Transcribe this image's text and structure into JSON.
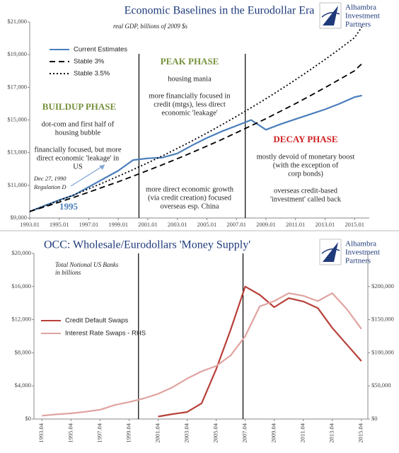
{
  "chart_data": [
    {
      "type": "line",
      "title": "Economic Baselines in the Eurodollar Era",
      "subtitle": "real GDP, billions of 2009 $s",
      "logo": [
        "Alhambra",
        "Investment",
        "Partners"
      ],
      "x": [
        1993,
        1994,
        1995,
        1996,
        1997,
        1998,
        1999,
        2000,
        2001,
        2002,
        2003,
        2004,
        2005,
        2006,
        2007,
        2008,
        2009,
        2010,
        2011,
        2012,
        2013,
        2014,
        2015,
        2015.5
      ],
      "series": [
        {
          "name": "Current Estimates",
          "color": "#4a7ebb",
          "dash": "solid",
          "values": [
            9400,
            9750,
            10100,
            10400,
            10900,
            11400,
            11900,
            12550,
            12650,
            12700,
            12950,
            13450,
            13900,
            14300,
            14650,
            15000,
            14400,
            14750,
            15050,
            15350,
            15650,
            16000,
            16400,
            16500
          ]
        },
        {
          "name": "Stable 3%",
          "color": "#000000",
          "dash": "dashed",
          "values": [
            9400,
            9680,
            9970,
            10270,
            10580,
            10900,
            11220,
            11560,
            11910,
            12260,
            12630,
            13010,
            13400,
            13800,
            14220,
            14650,
            15080,
            15540,
            16000,
            16480,
            16980,
            17490,
            18010,
            18450
          ]
        },
        {
          "name": "Stable 3.5%",
          "color": "#000000",
          "dash": "dotted",
          "values": [
            9400,
            9730,
            10070,
            10420,
            10790,
            11160,
            11560,
            11960,
            12380,
            12810,
            13260,
            13720,
            14200,
            14700,
            15220,
            15750,
            16300,
            16870,
            17460,
            18070,
            18700,
            19360,
            20040,
            20700
          ]
        }
      ],
      "xlim": [
        1993,
        2016
      ],
      "xticks": [
        {
          "value": 1993,
          "label": "1993.01"
        },
        {
          "value": 1995,
          "label": "1995.01"
        },
        {
          "value": 1997,
          "label": "1997.01"
        },
        {
          "value": 1999,
          "label": "1999.01"
        },
        {
          "value": 2001,
          "label": "2001.01"
        },
        {
          "value": 2003,
          "label": "2003.01"
        },
        {
          "value": 2005,
          "label": "2005.01"
        },
        {
          "value": 2007,
          "label": "2007.01"
        },
        {
          "value": 2009,
          "label": "2009.01"
        },
        {
          "value": 2011,
          "label": "2011.01"
        },
        {
          "value": 2013,
          "label": "2013.01"
        },
        {
          "value": 2015,
          "label": "2015.01"
        }
      ],
      "ylim": [
        9000,
        21000
      ],
      "yticks": [
        {
          "value": 9000,
          "label": "$9,000"
        },
        {
          "value": 11000,
          "label": "$11,000"
        },
        {
          "value": 13000,
          "label": "$13,000"
        },
        {
          "value": 15000,
          "label": "$15,000"
        },
        {
          "value": 17000,
          "label": "$17,000"
        },
        {
          "value": 19000,
          "label": "$19,000"
        },
        {
          "value": 21000,
          "label": "$21,000"
        }
      ],
      "vlines": [
        2000.4,
        2007.6
      ],
      "legend": "upper left",
      "annotations": [
        "BUILDUP PHASE",
        "dot-com and first half of",
        "housing bubble",
        "financially focused, but more",
        "direct economic 'leakage' in",
        "US",
        "Dec 27, 1990",
        "Regulation D",
        "1995",
        "PEAK PHASE",
        "housing mania",
        "more financially focused in",
        "credit (mtgs), less direct",
        "economic 'leakage'",
        "more direct economic growth",
        "(via credit creation) focused",
        "overseas esp. China",
        "DECAY PHASE",
        "mostly devoid of monetary boost",
        "(with the exception of",
        "corp bonds)",
        "overseas credit-based",
        "'investment' called back"
      ]
    },
    {
      "type": "line",
      "title": "OCC: Wholesale/Eurodollars 'Money Supply'",
      "subtitle": [
        "Total Notional US Banks",
        "in billions"
      ],
      "logo": [
        "Alhambra",
        "Investment",
        "Partners"
      ],
      "x": [
        1993.75,
        1994.75,
        1995.75,
        1996.75,
        1997.75,
        1998.75,
        1999.75,
        2000.75,
        2001.75,
        2002.75,
        2003.75,
        2004.75,
        2005.75,
        2006.75,
        2007.75,
        2008.75,
        2009.75,
        2010.75,
        2011.75,
        2012.75,
        2013.75,
        2014.75,
        2015.75
      ],
      "series": [
        {
          "name": "Credit Default Swaps",
          "color": "#b8403a",
          "dash": "solid",
          "values": [
            null,
            null,
            null,
            null,
            null,
            null,
            null,
            null,
            300,
            600,
            850,
            1900,
            6000,
            10800,
            16000,
            15000,
            13500,
            14600,
            14200,
            13400,
            11000,
            9000,
            7000
          ]
        },
        {
          "name": "Interest Rate Swaps - RHS",
          "color": "#e0a3a0",
          "dash": "solid",
          "axis": "y2",
          "values": [
            5000,
            7000,
            8500,
            11000,
            14000,
            21000,
            25500,
            31000,
            38000,
            48000,
            61000,
            72000,
            80000,
            96000,
            125000,
            170000,
            178000,
            190000,
            186000,
            178000,
            190000,
            166000,
            136000
          ]
        }
      ],
      "xlim": [
        1993.2,
        2016.2
      ],
      "xticks": [
        {
          "value": 1993.75,
          "label": "1993.04"
        },
        {
          "value": 1995.75,
          "label": "1995.04"
        },
        {
          "value": 1997.75,
          "label": "1997.04"
        },
        {
          "value": 1999.75,
          "label": "1999.04"
        },
        {
          "value": 2001.75,
          "label": "2001.04"
        },
        {
          "value": 2003.75,
          "label": "2003.04"
        },
        {
          "value": 2005.75,
          "label": "2005.04"
        },
        {
          "value": 2007.75,
          "label": "2007.04"
        },
        {
          "value": 2009.75,
          "label": "2009.04"
        },
        {
          "value": 2011.75,
          "label": "2011.04"
        },
        {
          "value": 2013.75,
          "label": "2013.04"
        },
        {
          "value": 2015.75,
          "label": "2015.04"
        }
      ],
      "ylim": [
        0,
        20000
      ],
      "yticks": [
        {
          "value": 0,
          "label": "$0"
        },
        {
          "value": 4000,
          "label": "$4,000"
        },
        {
          "value": 8000,
          "label": "$8,000"
        },
        {
          "value": 12000,
          "label": "$12,000"
        },
        {
          "value": 16000,
          "label": "$16,000"
        },
        {
          "value": 20000,
          "label": "$20,000"
        }
      ],
      "y2lim": [
        0,
        250000
      ],
      "y2ticks": [
        {
          "value": 0,
          "label": "$0"
        },
        {
          "value": 50000,
          "label": "$50,000"
        },
        {
          "value": 100000,
          "label": "$100,000"
        },
        {
          "value": 150000,
          "label": "$150,000"
        },
        {
          "value": 200000,
          "label": "$200,000"
        }
      ],
      "vlines": [
        2000.4,
        2007.6
      ],
      "legend": "center left"
    }
  ]
}
